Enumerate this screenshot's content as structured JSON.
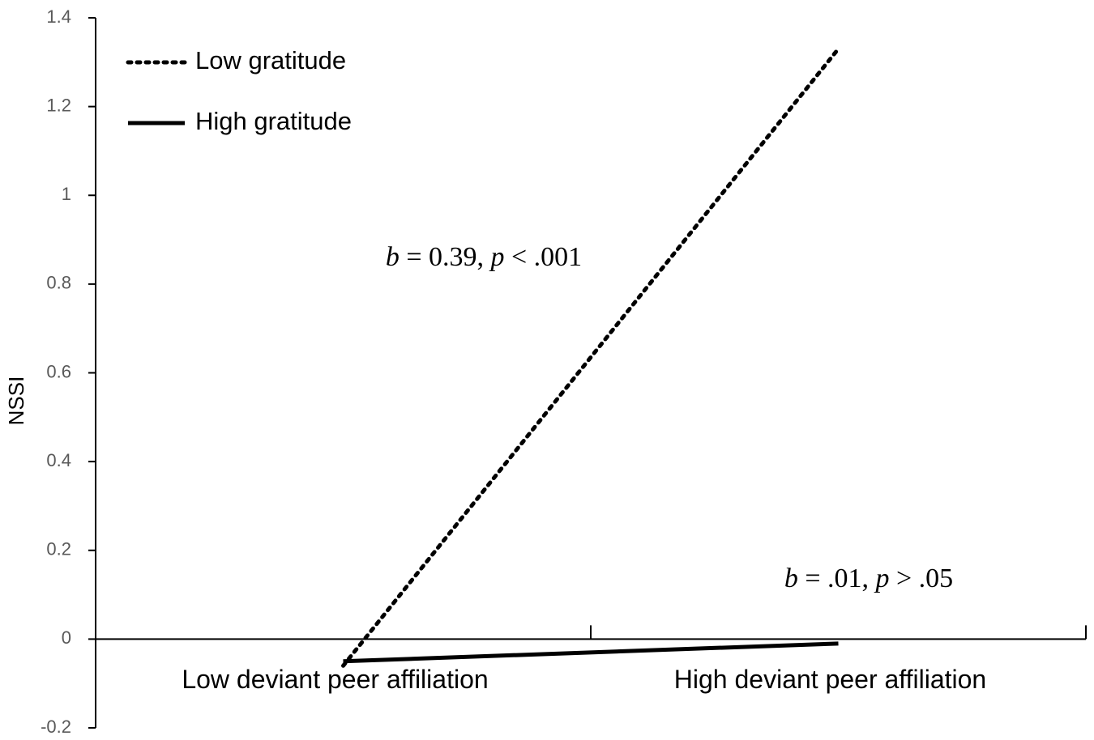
{
  "chart_data": {
    "type": "line",
    "y_label": "NSSI",
    "categories": [
      "Low deviant peer affiliation",
      "High deviant peer affiliation"
    ],
    "series": [
      {
        "name": "Low gratitude",
        "color": "#000000",
        "linestyle": "dotted",
        "values": [
          -0.06,
          1.33
        ]
      },
      {
        "name": "High gratitude",
        "color": "#000000",
        "linestyle": "solid",
        "values": [
          -0.05,
          -0.01
        ]
      }
    ],
    "annotations": [
      "b = 0.39, p < .001",
      "b = .01, p > .05"
    ],
    "ylim": [
      -0.2,
      1.4
    ],
    "yticks": [
      -0.2,
      0,
      0.2,
      0.4,
      0.6,
      0.8,
      1,
      1.2,
      1.4
    ],
    "legend": "upper left",
    "grid": false
  }
}
